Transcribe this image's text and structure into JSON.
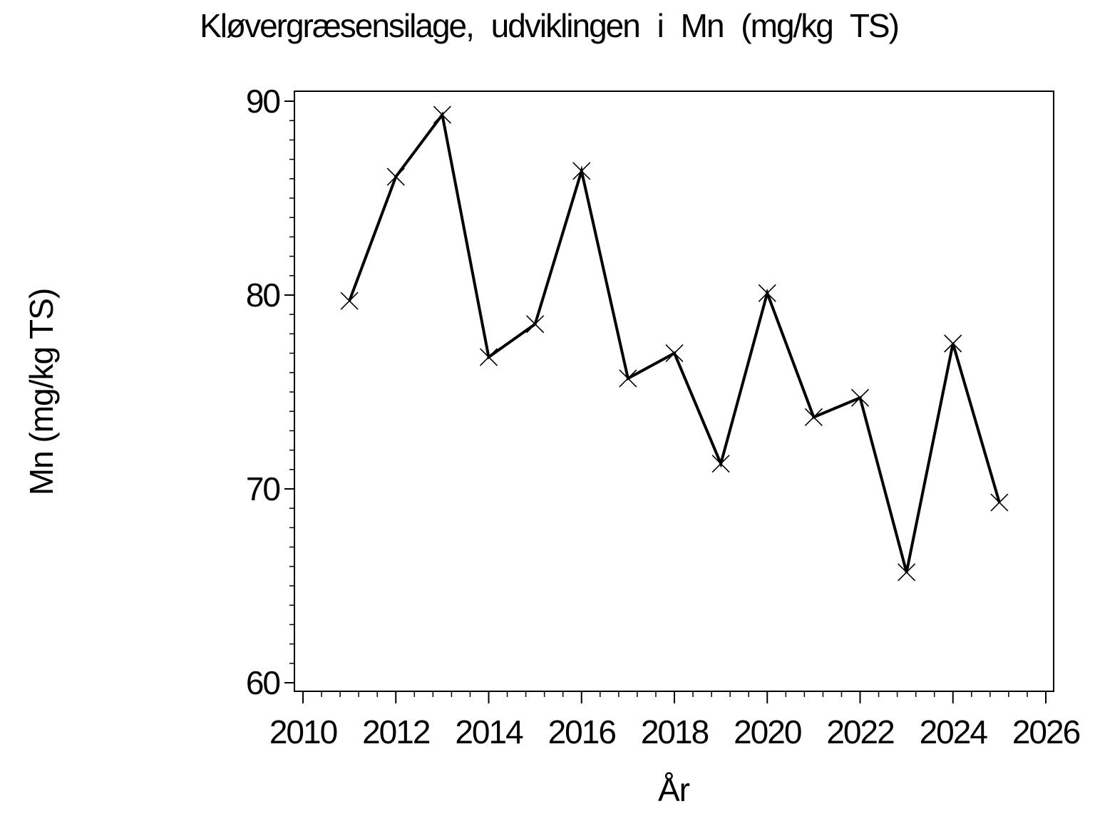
{
  "page": {
    "background_color": "#ffffff",
    "foreground_color": "#000000"
  },
  "chart_data": {
    "type": "line",
    "title": "Kløvergræsensilage, udviklingen i Mn (mg/kg TS)",
    "xlabel": "År",
    "ylabel": "Mn (mg/kg TS)",
    "series": [
      {
        "name": "Mn",
        "x": [
          2011,
          2012,
          2013,
          2014,
          2015,
          2016,
          2017,
          2018,
          2019,
          2020,
          2021,
          2022,
          2023,
          2024,
          2025
        ],
        "values": [
          79.7,
          86.1,
          89.3,
          76.8,
          78.5,
          86.4,
          75.7,
          77.0,
          71.3,
          80.1,
          73.7,
          74.7,
          65.7,
          77.5,
          69.3
        ]
      }
    ],
    "x_major_ticks": [
      2010,
      2012,
      2014,
      2016,
      2018,
      2020,
      2022,
      2024,
      2026
    ],
    "y_major_ticks": [
      90,
      80,
      70,
      60
    ],
    "x_minor_step": 0.4,
    "y_minor_step": 1,
    "xlim": [
      2010,
      2026
    ],
    "ylim": [
      60,
      90
    ],
    "grid": "off",
    "legend": "none",
    "marker": "x",
    "line_color": "#000000",
    "marker_color": "#000000"
  }
}
